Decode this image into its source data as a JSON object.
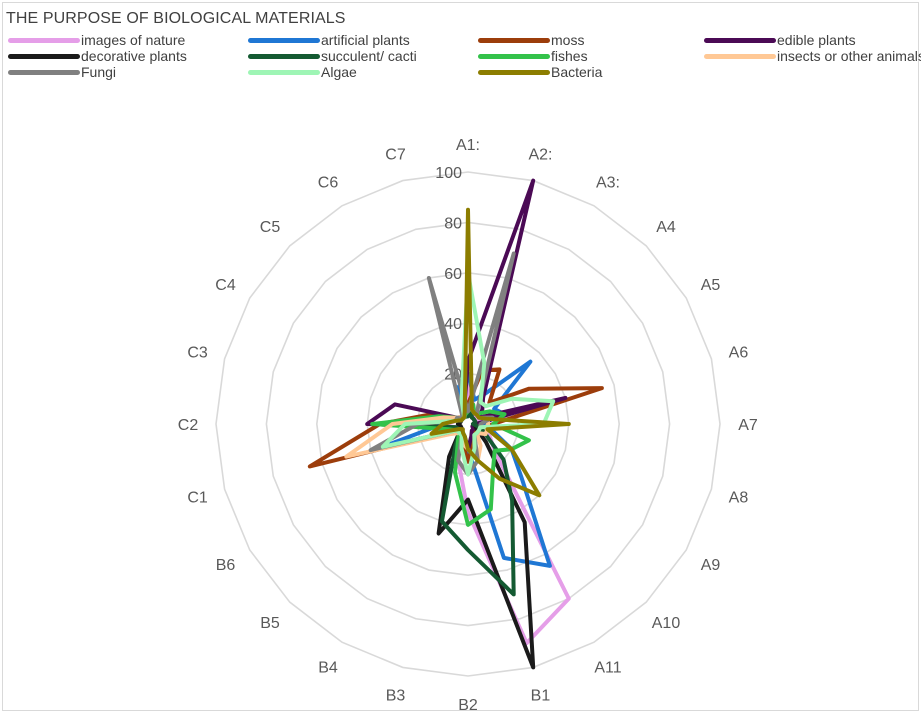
{
  "chart_data": {
    "type": "radar",
    "title": "THE PURPOSE OF BIOLOGICAL MATERIALS",
    "axes": [
      "A1:",
      "A2:",
      "A3:",
      "A4",
      "A5",
      "A6",
      "A7",
      "A8",
      "A9",
      "A10",
      "A11",
      "B1",
      "B2",
      "B3",
      "B4",
      "B5",
      "B6",
      "C1",
      "C2",
      "C3",
      "C4",
      "C5",
      "C6",
      "C7"
    ],
    "rmax": 100,
    "ticks": [
      20,
      40,
      60,
      80,
      100
    ],
    "tick_labels": [
      "20",
      "40",
      "60",
      "80",
      "100"
    ],
    "grid": true,
    "legend_position": "top",
    "series": [
      {
        "name": "images of nature",
        "color": "#e59ee8",
        "values": [
          15,
          8,
          5,
          4,
          6,
          4,
          3,
          4,
          10,
          15,
          80,
          90,
          35,
          15,
          8,
          4,
          3,
          10,
          8,
          5,
          4,
          3,
          3,
          5
        ]
      },
      {
        "name": "artificial plants",
        "color": "#1f77d4",
        "values": [
          20,
          10,
          14,
          35,
          12,
          15,
          5,
          10,
          20,
          30,
          65,
          55,
          10,
          5,
          4,
          5,
          5,
          35,
          10,
          8,
          5,
          4,
          4,
          15
        ]
      },
      {
        "name": "moss",
        "color": "#9c3d0b",
        "values": [
          8,
          22,
          25,
          12,
          28,
          55,
          10,
          6,
          5,
          3,
          5,
          8,
          15,
          8,
          5,
          5,
          5,
          65,
          35,
          15,
          5,
          4,
          3,
          8
        ]
      },
      {
        "name": "edible plants",
        "color": "#4b0a55",
        "values": [
          25,
          100,
          12,
          8,
          5,
          40,
          3,
          3,
          2,
          3,
          3,
          5,
          10,
          5,
          5,
          3,
          4,
          5,
          40,
          30,
          5,
          3,
          3,
          6
        ]
      },
      {
        "name": "decorative plants",
        "color": "#1a1a1a",
        "values": [
          5,
          5,
          3,
          3,
          3,
          3,
          2,
          3,
          4,
          10,
          45,
          100,
          30,
          45,
          15,
          5,
          3,
          3,
          4,
          3,
          3,
          3,
          3,
          4
        ]
      },
      {
        "name": "succulent/ cacti",
        "color": "#145a32",
        "values": [
          3,
          5,
          3,
          3,
          3,
          3,
          2,
          5,
          8,
          20,
          35,
          70,
          50,
          40,
          10,
          5,
          4,
          5,
          35,
          10,
          3,
          3,
          3,
          3
        ]
      },
      {
        "name": "fishes",
        "color": "#33c24a",
        "values": [
          5,
          8,
          5,
          6,
          10,
          15,
          10,
          25,
          20,
          15,
          20,
          35,
          40,
          20,
          8,
          5,
          5,
          8,
          38,
          12,
          5,
          3,
          3,
          4
        ]
      },
      {
        "name": "insects or other animals",
        "color": "#ffc895",
        "values": [
          6,
          6,
          5,
          5,
          5,
          8,
          8,
          8,
          8,
          5,
          10,
          15,
          10,
          8,
          5,
          5,
          8,
          50,
          30,
          10,
          5,
          4,
          3,
          5
        ]
      },
      {
        "name": "Fungi",
        "color": "#808080",
        "values": [
          5,
          70,
          8,
          5,
          5,
          10,
          5,
          5,
          5,
          5,
          5,
          15,
          20,
          15,
          5,
          5,
          5,
          40,
          20,
          5,
          5,
          3,
          5,
          60
        ]
      },
      {
        "name": "Algae",
        "color": "#9ef5b5",
        "values": [
          60,
          25,
          10,
          10,
          20,
          35,
          30,
          5,
          5,
          5,
          5,
          10,
          20,
          10,
          5,
          5,
          5,
          35,
          25,
          5,
          3,
          3,
          3,
          10
        ]
      },
      {
        "name": "Bacteria",
        "color": "#8c7d00",
        "values": [
          85,
          6,
          5,
          5,
          5,
          8,
          40,
          8,
          20,
          40,
          25,
          15,
          10,
          5,
          4,
          3,
          4,
          15,
          10,
          5,
          3,
          3,
          3,
          5
        ]
      }
    ]
  }
}
